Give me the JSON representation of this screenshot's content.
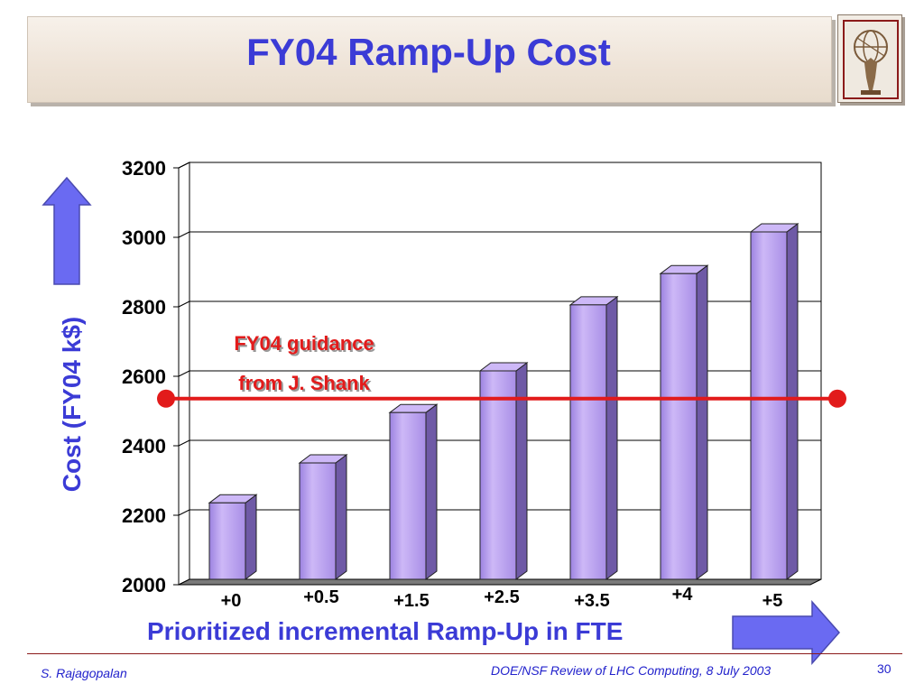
{
  "slide": {
    "title": "FY04 Ramp-Up Cost",
    "footer_left": "S. Rajagopalan",
    "footer_center": "DOE/NSF Review of LHC Computing, 8 July 2003",
    "page_number": "30"
  },
  "colors": {
    "title": "#3b3bd6",
    "bar_front": "#b99ff0",
    "bar_side": "#6f5aa6",
    "bar_top": "#cdb8f7",
    "guidance_line": "#e21b1b",
    "arrow": "#6a6af2",
    "footer_rule": "#8b1a1a"
  },
  "icons": {
    "logo": "atlas-logo-icon",
    "y_arrow": "up-arrow-icon",
    "x_arrow": "right-arrow-icon"
  },
  "chart_data": {
    "type": "bar",
    "categories": [
      "+0",
      "+0.5",
      "+1.5",
      "+2.5",
      "+3.5",
      "+4",
      "+5"
    ],
    "values": [
      2220,
      2335,
      2480,
      2600,
      2790,
      2880,
      3000
    ],
    "xlabel": "Prioritized incremental Ramp-Up in FTE",
    "ylabel": "Cost (FY04 k$)",
    "ylim": [
      2000,
      3200
    ],
    "yticks": [
      2000,
      2200,
      2400,
      2600,
      2800,
      3000,
      3200
    ],
    "grid": true,
    "style": "3d",
    "reference_line": {
      "value": 2520,
      "label_line1": "FY04 guidance",
      "label_line2": "from J. Shank"
    }
  }
}
